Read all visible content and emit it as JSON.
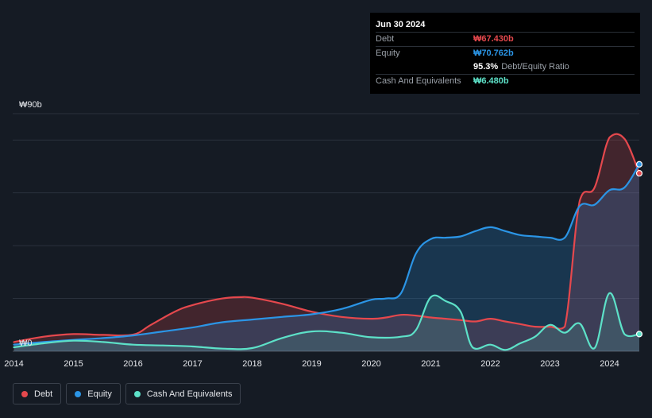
{
  "tooltip": {
    "date": "Jun 30 2024",
    "rows": [
      {
        "label": "Debt",
        "value": "₩67.430b",
        "color": "#e5484d"
      },
      {
        "label": "Equity",
        "value": "₩70.762b",
        "color": "#2b95e6"
      },
      {
        "label": "",
        "value": "95.3%",
        "extra": "Debt/Equity Ratio",
        "color": "#ffffff"
      },
      {
        "label": "Cash And Equivalents",
        "value": "₩6.480b",
        "color": "#5de1c8"
      }
    ]
  },
  "legend": [
    {
      "label": "Debt",
      "color": "#e5484d"
    },
    {
      "label": "Equity",
      "color": "#2b95e6"
    },
    {
      "label": "Cash And Equivalents",
      "color": "#5de1c8"
    }
  ],
  "chart_data": {
    "type": "area",
    "title": "",
    "xlabel": "",
    "ylabel": "",
    "y_top_label": "₩90b",
    "y_bottom_label": "₩0",
    "ylim": [
      0,
      90
    ],
    "xlim": [
      2013.98,
      2024.5
    ],
    "x_ticks": [
      "2014",
      "2015",
      "2016",
      "2017",
      "2018",
      "2019",
      "2020",
      "2021",
      "2022",
      "2023",
      "2024"
    ],
    "series": [
      {
        "name": "Debt",
        "color": "#e5484d",
        "points": [
          [
            2014.0,
            3.5
          ],
          [
            2014.5,
            5.5
          ],
          [
            2015.0,
            6.5
          ],
          [
            2015.5,
            6.2
          ],
          [
            2016.0,
            6.3
          ],
          [
            2016.3,
            10
          ],
          [
            2016.7,
            15
          ],
          [
            2017.0,
            17.5
          ],
          [
            2017.5,
            20
          ],
          [
            2017.8,
            20.5
          ],
          [
            2018.0,
            20.3
          ],
          [
            2018.5,
            18
          ],
          [
            2019.0,
            15
          ],
          [
            2019.5,
            13
          ],
          [
            2020.0,
            12.3
          ],
          [
            2020.25,
            12.8
          ],
          [
            2020.5,
            13.8
          ],
          [
            2020.75,
            13.5
          ],
          [
            2021.0,
            12.8
          ],
          [
            2021.25,
            12.3
          ],
          [
            2021.5,
            11.8
          ],
          [
            2021.75,
            11.3
          ],
          [
            2022.0,
            12.3
          ],
          [
            2022.25,
            11.3
          ],
          [
            2022.5,
            10.3
          ],
          [
            2022.75,
            9.3
          ],
          [
            2023.0,
            9.3
          ],
          [
            2023.25,
            9.3
          ],
          [
            2023.5,
            57
          ],
          [
            2023.75,
            62
          ],
          [
            2024.0,
            81
          ],
          [
            2024.25,
            80.5
          ],
          [
            2024.5,
            67.4
          ]
        ]
      },
      {
        "name": "Equity",
        "color": "#2b95e6",
        "points": [
          [
            2014.0,
            2.5
          ],
          [
            2014.5,
            3.5
          ],
          [
            2015.0,
            4.3
          ],
          [
            2015.5,
            5
          ],
          [
            2016.0,
            6
          ],
          [
            2016.5,
            7.5
          ],
          [
            2017.0,
            9
          ],
          [
            2017.5,
            11
          ],
          [
            2018.0,
            12
          ],
          [
            2018.5,
            13
          ],
          [
            2019.0,
            14
          ],
          [
            2019.5,
            16
          ],
          [
            2020.0,
            19.5
          ],
          [
            2020.25,
            20
          ],
          [
            2020.5,
            22
          ],
          [
            2020.75,
            37
          ],
          [
            2021.0,
            42.5
          ],
          [
            2021.25,
            43
          ],
          [
            2021.5,
            43.5
          ],
          [
            2021.75,
            45.5
          ],
          [
            2022.0,
            47
          ],
          [
            2022.25,
            45.5
          ],
          [
            2022.5,
            44
          ],
          [
            2022.75,
            43.5
          ],
          [
            2023.0,
            43
          ],
          [
            2023.25,
            43
          ],
          [
            2023.5,
            55
          ],
          [
            2023.75,
            55.5
          ],
          [
            2024.0,
            61
          ],
          [
            2024.25,
            62
          ],
          [
            2024.5,
            70.8
          ]
        ]
      },
      {
        "name": "Cash And Equivalents",
        "color": "#5de1c8",
        "points": [
          [
            2014.0,
            1.5
          ],
          [
            2014.5,
            3
          ],
          [
            2015.0,
            4
          ],
          [
            2015.5,
            3.5
          ],
          [
            2016.0,
            2.5
          ],
          [
            2016.5,
            2.2
          ],
          [
            2017.0,
            1.8
          ],
          [
            2017.5,
            1
          ],
          [
            2018.0,
            1.2
          ],
          [
            2018.5,
            5
          ],
          [
            2019.0,
            7.5
          ],
          [
            2019.5,
            7
          ],
          [
            2020.0,
            5.3
          ],
          [
            2020.5,
            5.5
          ],
          [
            2020.75,
            8
          ],
          [
            2021.0,
            20.5
          ],
          [
            2021.25,
            19
          ],
          [
            2021.5,
            15
          ],
          [
            2021.7,
            1.5
          ],
          [
            2022.0,
            2.5
          ],
          [
            2022.25,
            0.5
          ],
          [
            2022.5,
            3
          ],
          [
            2022.75,
            5.5
          ],
          [
            2023.0,
            10
          ],
          [
            2023.25,
            7
          ],
          [
            2023.5,
            10.5
          ],
          [
            2023.75,
            1.2
          ],
          [
            2024.0,
            22
          ],
          [
            2024.25,
            6.5
          ],
          [
            2024.5,
            6.5
          ]
        ]
      }
    ]
  }
}
